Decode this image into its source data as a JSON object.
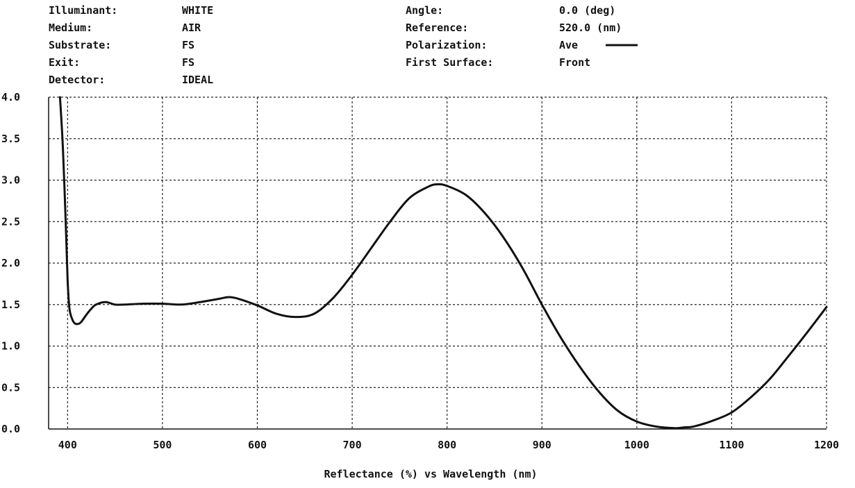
{
  "header": {
    "left": [
      {
        "label": "Illuminant:",
        "value": "WHITE"
      },
      {
        "label": "Medium:",
        "value": "AIR"
      },
      {
        "label": "Substrate:",
        "value": "FS"
      },
      {
        "label": "Exit:",
        "value": "FS"
      },
      {
        "label": "Detector:",
        "value": "IDEAL"
      }
    ],
    "right": [
      {
        "label": "Angle:",
        "value": "0.0 (deg)"
      },
      {
        "label": "Reference:",
        "value": "520.0 (nm)"
      },
      {
        "label": "Polarization:",
        "value": "Ave"
      },
      {
        "label": "First Surface:",
        "value": "Front"
      }
    ]
  },
  "chart_data": {
    "type": "line",
    "title": "",
    "xlabel": "Reflectance (%) vs Wavelength (nm)",
    "ylabel": "",
    "xlim": [
      380,
      1200
    ],
    "ylim": [
      0.0,
      4.0
    ],
    "x_ticks": [
      400,
      500,
      600,
      700,
      800,
      900,
      1000,
      1100,
      1200
    ],
    "y_ticks": [
      "0.0",
      "0.5",
      "1.0",
      "1.5",
      "2.0",
      "2.5",
      "3.0",
      "3.5",
      "4.0"
    ],
    "grid": true,
    "legend": "top-right",
    "colors": {
      "line": "#111111",
      "grid": "#222222",
      "axis": "#111111"
    },
    "series": [
      {
        "name": "Ave",
        "x": [
          392,
          395,
          398,
          400,
          402,
          405,
          408,
          412,
          415,
          420,
          425,
          430,
          440,
          450,
          460,
          480,
          500,
          520,
          540,
          560,
          570,
          580,
          600,
          620,
          640,
          660,
          680,
          700,
          720,
          740,
          760,
          780,
          790,
          800,
          820,
          840,
          860,
          880,
          900,
          920,
          940,
          960,
          980,
          1000,
          1020,
          1040,
          1050,
          1060,
          1080,
          1100,
          1120,
          1140,
          1160,
          1180,
          1200
        ],
        "y": [
          4.0,
          3.4,
          2.5,
          1.8,
          1.45,
          1.32,
          1.27,
          1.27,
          1.3,
          1.38,
          1.45,
          1.5,
          1.53,
          1.5,
          1.5,
          1.51,
          1.51,
          1.5,
          1.53,
          1.57,
          1.59,
          1.57,
          1.49,
          1.39,
          1.35,
          1.39,
          1.58,
          1.86,
          2.18,
          2.5,
          2.78,
          2.92,
          2.95,
          2.93,
          2.82,
          2.6,
          2.3,
          1.93,
          1.5,
          1.1,
          0.75,
          0.45,
          0.22,
          0.09,
          0.03,
          0.01,
          0.02,
          0.03,
          0.1,
          0.2,
          0.38,
          0.6,
          0.88,
          1.17,
          1.47
        ]
      }
    ]
  }
}
